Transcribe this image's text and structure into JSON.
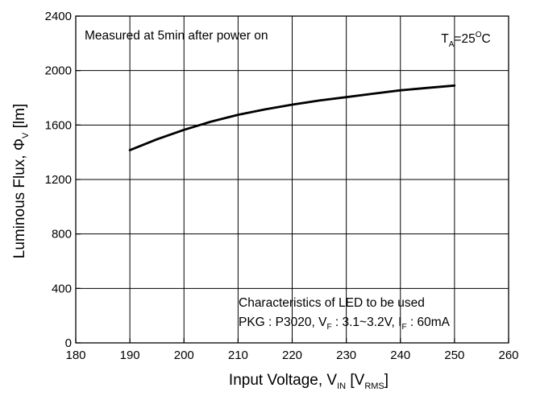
{
  "chart_data": {
    "type": "line",
    "xlabel": {
      "main": "Input Voltage, V",
      "sub": "IN",
      "bracket_open": " [V",
      "bracket_sub": "RMS",
      "bracket_close": "]"
    },
    "ylabel": {
      "main": "Luminous Flux, Φ",
      "sub": "V",
      "tail": " [lm]"
    },
    "xlim": [
      180,
      260
    ],
    "ylim": [
      0,
      2400
    ],
    "x_ticks": [
      "180",
      "190",
      "200",
      "210",
      "220",
      "230",
      "240",
      "250",
      "260"
    ],
    "y_ticks": [
      "0",
      "400",
      "800",
      "1200",
      "1600",
      "2000",
      "2400"
    ],
    "grid": true,
    "series": [
      {
        "x": [
          190,
          195,
          200,
          205,
          210,
          215,
          220,
          225,
          230,
          235,
          240,
          245,
          250
        ],
        "y": [
          1415,
          1495,
          1565,
          1625,
          1675,
          1715,
          1750,
          1780,
          1805,
          1830,
          1855,
          1873,
          1890
        ],
        "color": "#000000"
      }
    ],
    "annotations": {
      "measured": "Measured at 5min after power on",
      "temp": {
        "main": "T",
        "sub": "A",
        "val": "=25",
        "sup": "O",
        "unit": "C"
      },
      "led_title": "Characteristics of LED to be used",
      "led_spec": {
        "p1": "PKG : P3020, V",
        "s1": "F",
        "p2": " : 3.1~3.2V, I",
        "s2": "F",
        "p3": " : 60mA"
      }
    }
  }
}
